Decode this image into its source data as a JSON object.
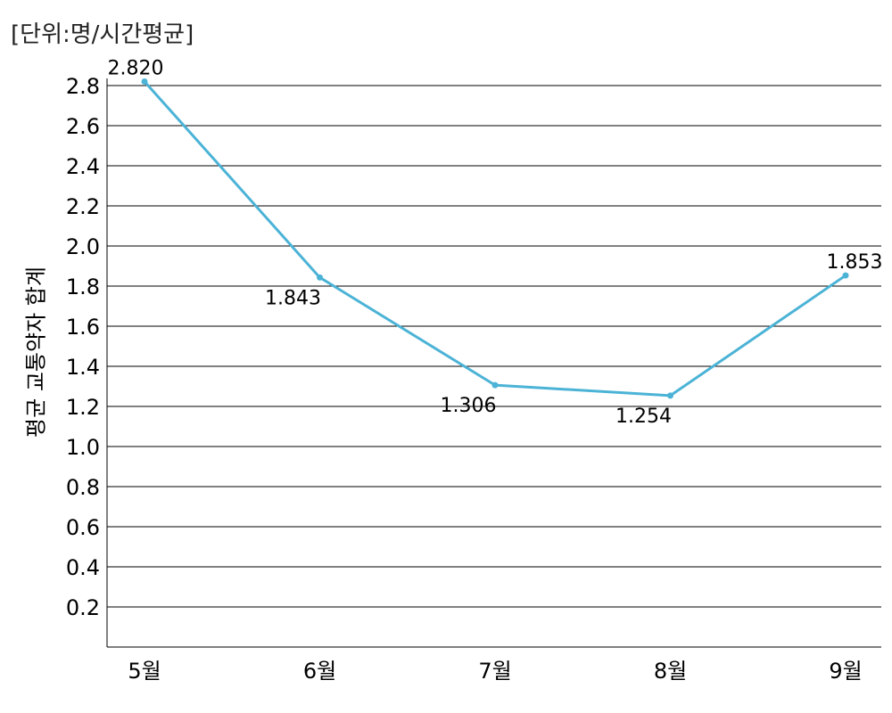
{
  "chart_data": {
    "type": "line",
    "unit_note": "[단위:명/시간평균]",
    "ylabel": "평균 교통약자 합계",
    "xlabel": "",
    "categories": [
      "5월",
      "6월",
      "7월",
      "8월",
      "9월"
    ],
    "series": [
      {
        "values": [
          2.82,
          1.843,
          1.306,
          1.254,
          1.853
        ],
        "labels": [
          "2.820",
          "1.843",
          "1.306",
          "1.254",
          "1.853"
        ]
      }
    ],
    "yticks": [
      "0.2",
      "0.4",
      "0.6",
      "0.8",
      "1.0",
      "1.2",
      "1.4",
      "1.6",
      "1.8",
      "2.0",
      "2.2",
      "2.4",
      "2.6",
      "2.8"
    ],
    "ylim": [
      0,
      2.8
    ],
    "grid": true,
    "legend": "none",
    "colors": {
      "line": "#4bb3d6",
      "grid": "#000000"
    }
  }
}
